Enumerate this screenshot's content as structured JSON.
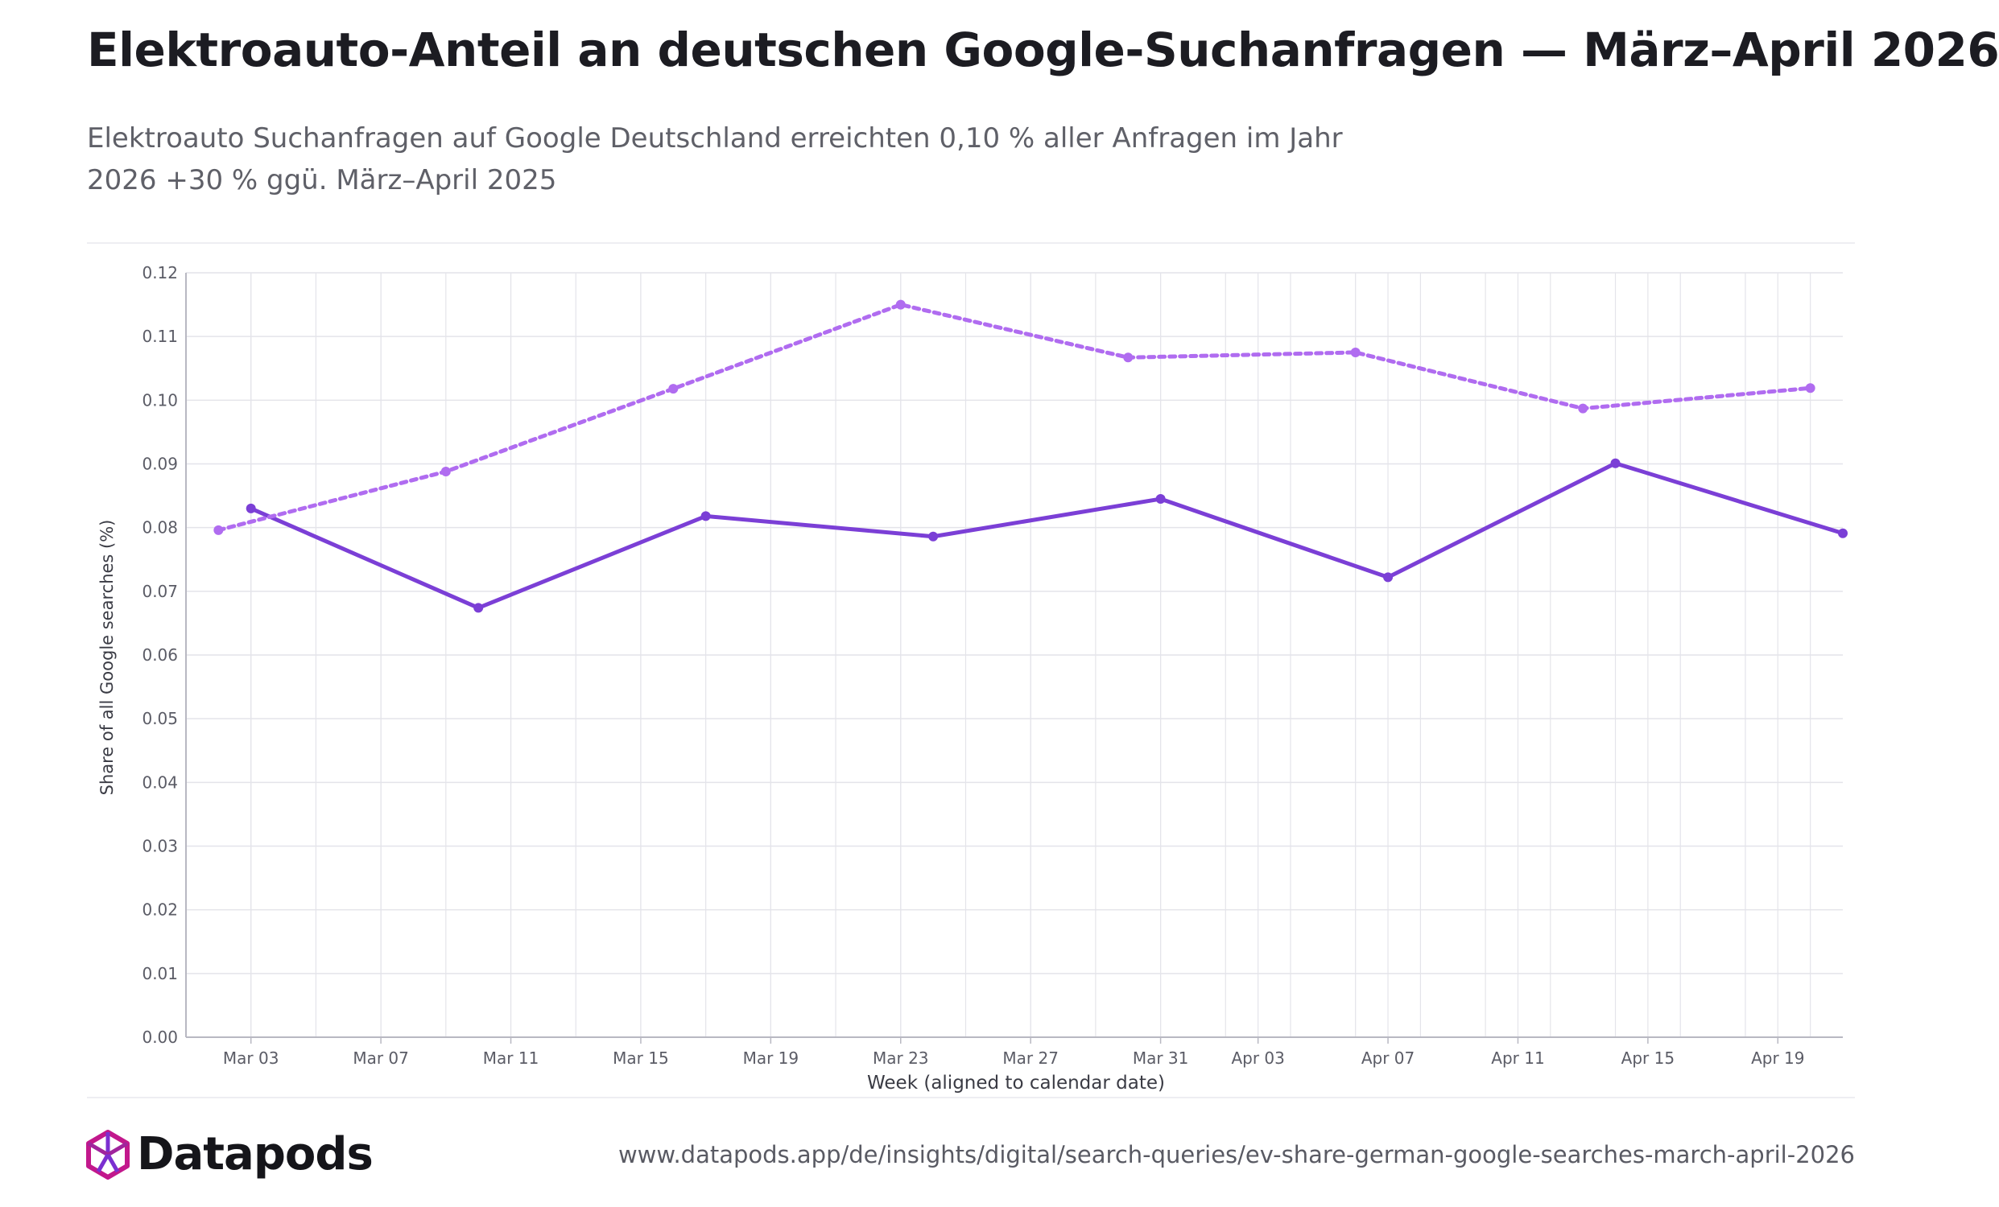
{
  "header": {
    "title": "Elektroauto-Anteil an deutschen Google-Suchanfragen — März–April 2026",
    "subtitle_line1": "Elektroauto Suchanfragen auf Google Deutschland erreichten 0,10 % aller Anfragen im Jahr",
    "subtitle_line2": "2026 +30 % ggü. März–April 2025"
  },
  "footer": {
    "brand": "Datapods",
    "source_url": "www.datapods.app/de/insights/digital/search-queries/ev-share-german-google-searches-march-april-2026"
  },
  "colors": {
    "solid_series": "#7b3fd6",
    "dotted_series": "#b06cf0",
    "grid": "#e4e4ea",
    "axis": "#b8b8c2",
    "tick_text": "#5b5c66",
    "logo_primary": "#c2188c",
    "logo_secondary": "#7b2fd0"
  },
  "chart_data": {
    "type": "line",
    "xlabel": "Week (aligned to calendar date)",
    "ylabel": "Share of all Google searches (%)",
    "ylim": [
      0,
      0.12
    ],
    "xlim": [
      "2026-03-01",
      "2026-04-21"
    ],
    "grid": true,
    "legend": "none",
    "y_ticks": [
      "0.00",
      "0.01",
      "0.02",
      "0.03",
      "0.04",
      "0.05",
      "0.06",
      "0.07",
      "0.08",
      "0.09",
      "0.10",
      "0.11",
      "0.12"
    ],
    "x_ticks": [
      {
        "date": "2026-03-03",
        "label": "Mar 03"
      },
      {
        "date": "2026-03-07",
        "label": "Mar 07"
      },
      {
        "date": "2026-03-11",
        "label": "Mar 11"
      },
      {
        "date": "2026-03-15",
        "label": "Mar 15"
      },
      {
        "date": "2026-03-19",
        "label": "Mar 19"
      },
      {
        "date": "2026-03-23",
        "label": "Mar 23"
      },
      {
        "date": "2026-03-27",
        "label": "Mar 27"
      },
      {
        "date": "2026-03-31",
        "label": "Mar 31"
      },
      {
        "date": "2026-04-03",
        "label": "Apr 03"
      },
      {
        "date": "2026-04-07",
        "label": "Apr 07"
      },
      {
        "date": "2026-04-11",
        "label": "Apr 11"
      },
      {
        "date": "2026-04-15",
        "label": "Apr 15"
      },
      {
        "date": "2026-04-19",
        "label": "Apr 19"
      }
    ],
    "series": [
      {
        "style": "solid",
        "x": [
          "2026-03-03",
          "2026-03-10",
          "2026-03-17",
          "2026-03-24",
          "2026-03-31",
          "2026-04-07",
          "2026-04-14",
          "2026-04-21"
        ],
        "values": [
          0.083,
          0.0674,
          0.0818,
          0.0786,
          0.0845,
          0.0722,
          0.0901,
          0.0791
        ]
      },
      {
        "style": "dotted",
        "x": [
          "2026-03-02",
          "2026-03-09",
          "2026-03-16",
          "2026-03-23",
          "2026-03-30",
          "2026-04-06",
          "2026-04-13",
          "2026-04-20"
        ],
        "values": [
          0.0796,
          0.0888,
          0.1018,
          0.115,
          0.1067,
          0.1075,
          0.0987,
          0.1019
        ]
      }
    ]
  }
}
